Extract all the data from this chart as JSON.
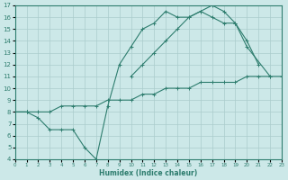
{
  "xlabel": "Humidex (Indice chaleur)",
  "bg_color": "#cce8e8",
  "grid_color": "#aacccc",
  "line_color": "#2e7d6e",
  "series1_x": [
    0,
    1,
    2,
    3,
    4,
    5,
    6,
    7,
    8,
    9,
    10,
    11,
    12,
    13,
    14,
    15,
    16,
    17,
    18,
    19,
    20,
    21
  ],
  "series1_y": [
    8.0,
    8.0,
    7.5,
    6.5,
    6.5,
    6.5,
    5.0,
    4.0,
    8.5,
    12.0,
    13.5,
    15.0,
    15.5,
    16.5,
    16.0,
    16.0,
    16.5,
    17.0,
    16.5,
    15.5,
    14.0,
    12.0
  ],
  "series2_x": [
    0,
    1,
    10,
    11,
    12,
    13,
    14,
    15,
    16,
    17,
    18,
    19,
    20,
    22
  ],
  "series2_y": [
    8.0,
    8.0,
    11.0,
    12.0,
    13.0,
    14.0,
    15.0,
    16.0,
    16.5,
    16.0,
    15.5,
    15.5,
    13.5,
    11.0
  ],
  "series3_x": [
    0,
    1,
    2,
    3,
    4,
    5,
    6,
    7,
    8,
    9,
    10,
    11,
    12,
    13,
    14,
    15,
    16,
    17,
    18,
    19,
    20,
    21,
    22,
    23
  ],
  "series3_y": [
    8.0,
    8.0,
    8.0,
    8.0,
    8.5,
    8.5,
    8.5,
    8.5,
    9.0,
    9.0,
    9.0,
    9.5,
    9.5,
    10.0,
    10.0,
    10.0,
    10.5,
    10.5,
    10.5,
    10.5,
    11.0,
    11.0,
    11.0,
    11.0
  ],
  "ylim": [
    4,
    17
  ],
  "xlim": [
    0,
    23
  ],
  "yticks": [
    4,
    5,
    6,
    7,
    8,
    9,
    10,
    11,
    12,
    13,
    14,
    15,
    16,
    17
  ],
  "xticks": [
    0,
    1,
    2,
    3,
    4,
    5,
    6,
    7,
    8,
    9,
    10,
    11,
    12,
    13,
    14,
    15,
    16,
    17,
    18,
    19,
    20,
    21,
    22,
    23
  ]
}
